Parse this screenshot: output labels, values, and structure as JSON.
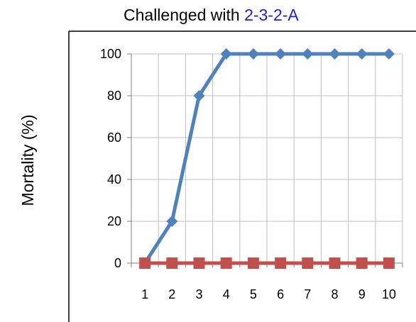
{
  "title": {
    "prefix": "Challenged with ",
    "highlight": "2-3-2-A"
  },
  "colors": {
    "highlight": "#1f1fd0",
    "series_blue": "#4f81bd",
    "series_red": "#c0504d",
    "grid": "#c0c0c0",
    "frame": "#000000"
  },
  "chart_data": {
    "type": "line",
    "ylabel": "Mortality (%)",
    "xlabel": "",
    "x": [
      1,
      2,
      3,
      4,
      5,
      6,
      7,
      8,
      9,
      10
    ],
    "x_tick_labels": [
      "1",
      "2",
      "3",
      "4",
      "5",
      "6",
      "7",
      "8",
      "9",
      "10"
    ],
    "ylim": [
      0,
      100
    ],
    "y_ticks": [
      0,
      20,
      40,
      60,
      80,
      100
    ],
    "y_tick_labels": [
      "0",
      "20",
      "40",
      "60",
      "80",
      "100"
    ],
    "grid": true,
    "series": [
      {
        "values": [
          0,
          20,
          80,
          100,
          100,
          100,
          100,
          100,
          100,
          100
        ],
        "color": "#4f81bd",
        "marker": "diamond"
      },
      {
        "values": [
          0,
          0,
          0,
          0,
          0,
          0,
          0,
          0,
          0,
          0
        ],
        "color": "#c0504d",
        "marker": "square"
      }
    ]
  }
}
